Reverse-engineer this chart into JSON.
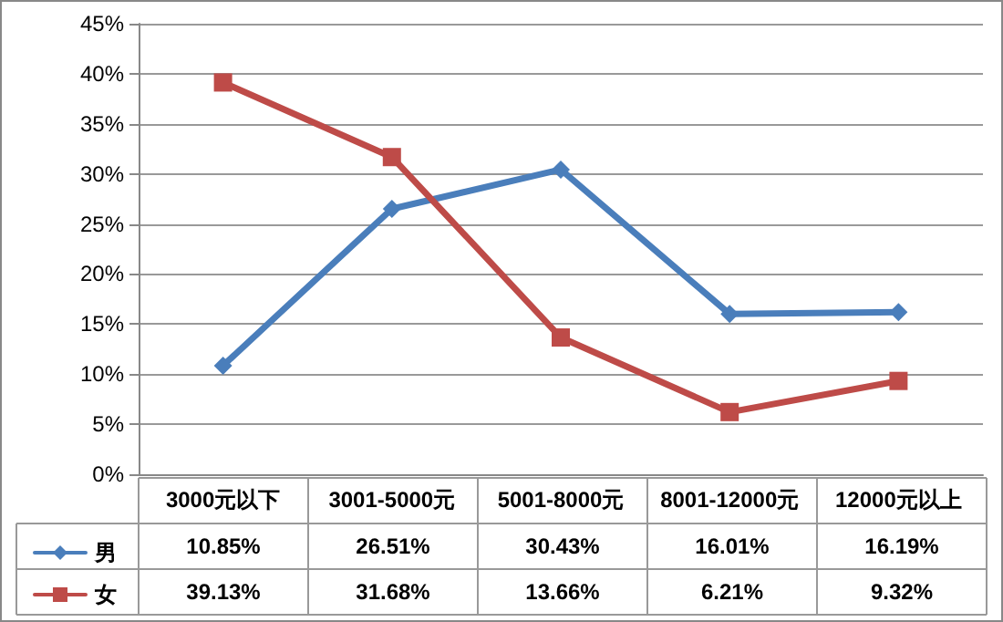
{
  "chart_data": {
    "type": "line",
    "categories": [
      "3000元以下",
      "3001-5000元",
      "5001-8000元",
      "8001-12000元",
      "12000元以上"
    ],
    "series": [
      {
        "name": "男",
        "color": "#4a7ebb",
        "marker": "diamond",
        "values": [
          10.85,
          26.51,
          30.43,
          16.01,
          16.19
        ],
        "value_labels": [
          "10.85%",
          "26.51%",
          "30.43%",
          "16.01%",
          "16.19%"
        ]
      },
      {
        "name": "女",
        "color": "#be4b48",
        "marker": "square",
        "values": [
          39.13,
          31.68,
          13.66,
          6.21,
          9.32
        ],
        "value_labels": [
          "39.13%",
          "31.68%",
          "13.66%",
          "6.21%",
          "9.32%"
        ]
      }
    ],
    "ylim": [
      0,
      45
    ],
    "yticks": [
      {
        "value": 0,
        "label": "0%"
      },
      {
        "value": 5,
        "label": "5%"
      },
      {
        "value": 10,
        "label": "10%"
      },
      {
        "value": 15,
        "label": "15%"
      },
      {
        "value": 20,
        "label": "20%"
      },
      {
        "value": 25,
        "label": "25%"
      },
      {
        "value": 30,
        "label": "30%"
      },
      {
        "value": 35,
        "label": "35%"
      },
      {
        "value": 40,
        "label": "40%"
      },
      {
        "value": 45,
        "label": "45%"
      }
    ],
    "grid": "y",
    "legend": "bottom left",
    "line_style": "solid"
  }
}
